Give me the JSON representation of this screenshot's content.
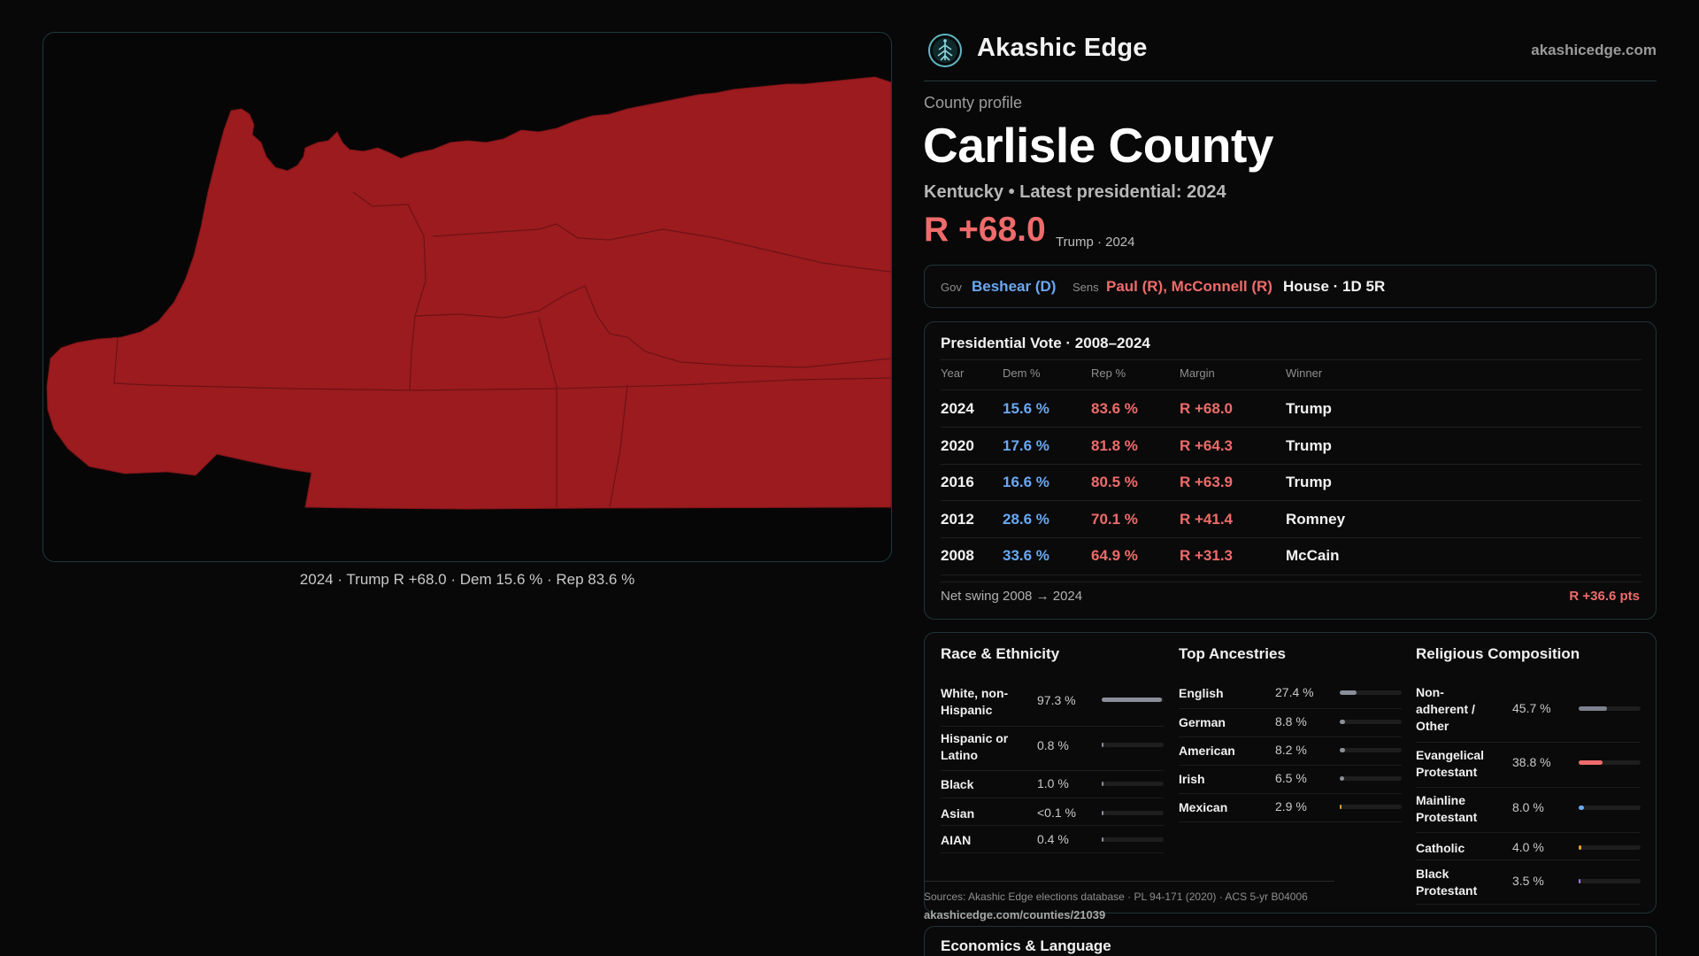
{
  "colors": {
    "republican": "#ef6b6b",
    "democrat": "#6aa8f2",
    "map_fill": "#9b1b1f",
    "accent_border": "#213436"
  },
  "header": {
    "brand": "Akashic Edge",
    "site": "akashicedge.com",
    "logo_icon": "tree-of-life-icon"
  },
  "map": {
    "caption": "2024 · Trump R +68.0 · Dem 15.6 % · Rep 83.6 %"
  },
  "profile": {
    "kicker": "County profile",
    "title": "Carlisle County",
    "subtitle": "Kentucky • Latest presidential: 2024",
    "margin": "R +68.0",
    "margin_note": "Trump · 2024"
  },
  "officials": {
    "gov_label": "Gov",
    "gov": "Beshear (D)",
    "sens_label": "Sens",
    "sens": "Paul (R), McConnell (R)",
    "house": "House · 1D 5R"
  },
  "presidential": {
    "title": "Presidential Vote · 2008–2024",
    "columns": [
      "Year",
      "Dem %",
      "Rep %",
      "Margin",
      "Winner"
    ],
    "rows": [
      {
        "year": "2024",
        "dem": "15.6 %",
        "rep": "83.6 %",
        "margin": "R +68.0",
        "winner": "Trump"
      },
      {
        "year": "2020",
        "dem": "17.6 %",
        "rep": "81.8 %",
        "margin": "R +64.3",
        "winner": "Trump"
      },
      {
        "year": "2016",
        "dem": "16.6 %",
        "rep": "80.5 %",
        "margin": "R +63.9",
        "winner": "Trump"
      },
      {
        "year": "2012",
        "dem": "28.6 %",
        "rep": "70.1 %",
        "margin": "R +41.4",
        "winner": "Romney"
      },
      {
        "year": "2008",
        "dem": "33.6 %",
        "rep": "64.9 %",
        "margin": "R +31.3",
        "winner": "McCain"
      }
    ],
    "swing_label": "Net swing 2008 → 2024",
    "swing_value": "R +36.6 pts"
  },
  "race": {
    "title": "Race & Ethnicity",
    "rows": [
      {
        "label": "White, non-Hispanic",
        "value": "97.3 %",
        "pct": 97.3,
        "color": "#8a8f99"
      },
      {
        "label": "Hispanic or Latino",
        "value": "0.8 %",
        "pct": 0.8,
        "color": "#8a8f99"
      },
      {
        "label": "Black",
        "value": "1.0 %",
        "pct": 1.0,
        "color": "#8a8f99"
      },
      {
        "label": "Asian",
        "value": "<0.1 %",
        "pct": 0.1,
        "color": "#8a8f99"
      },
      {
        "label": "AIAN",
        "value": "0.4 %",
        "pct": 0.4,
        "color": "#8a8f99"
      }
    ]
  },
  "ancestry": {
    "title": "Top Ancestries",
    "rows": [
      {
        "label": "English",
        "value": "27.4 %",
        "pct": 27.4,
        "color": "#8a8f99"
      },
      {
        "label": "German",
        "value": "8.8 %",
        "pct": 8.8,
        "color": "#8a8f99"
      },
      {
        "label": "American",
        "value": "8.2 %",
        "pct": 8.2,
        "color": "#8a8f99"
      },
      {
        "label": "Irish",
        "value": "6.5 %",
        "pct": 6.5,
        "color": "#8a8f99"
      },
      {
        "label": "Mexican",
        "value": "2.9 %",
        "pct": 2.9,
        "color": "#e0a030"
      }
    ]
  },
  "religion": {
    "title": "Religious Composition",
    "rows": [
      {
        "label": "Non-adherent / Other",
        "value": "45.7 %",
        "pct": 45.7,
        "color": "#7d8190"
      },
      {
        "label": "Evangelical Protestant",
        "value": "38.8 %",
        "pct": 38.8,
        "color": "#ef6b6b"
      },
      {
        "label": "Mainline Protestant",
        "value": "8.0 %",
        "pct": 8.0,
        "color": "#6aa8f2"
      },
      {
        "label": "Catholic",
        "value": "4.0 %",
        "pct": 4.0,
        "color": "#e0a030"
      },
      {
        "label": "Black Protestant",
        "value": "3.5 %",
        "pct": 3.5,
        "color": "#9b7ee8"
      }
    ]
  },
  "sources": {
    "text": "Sources: Akashic Edge elections database · PL 94-171 (2020) · ACS 5-yr B04006",
    "url": "akashicedge.com/counties/21039"
  },
  "economics": {
    "title": "Economics & Language"
  }
}
